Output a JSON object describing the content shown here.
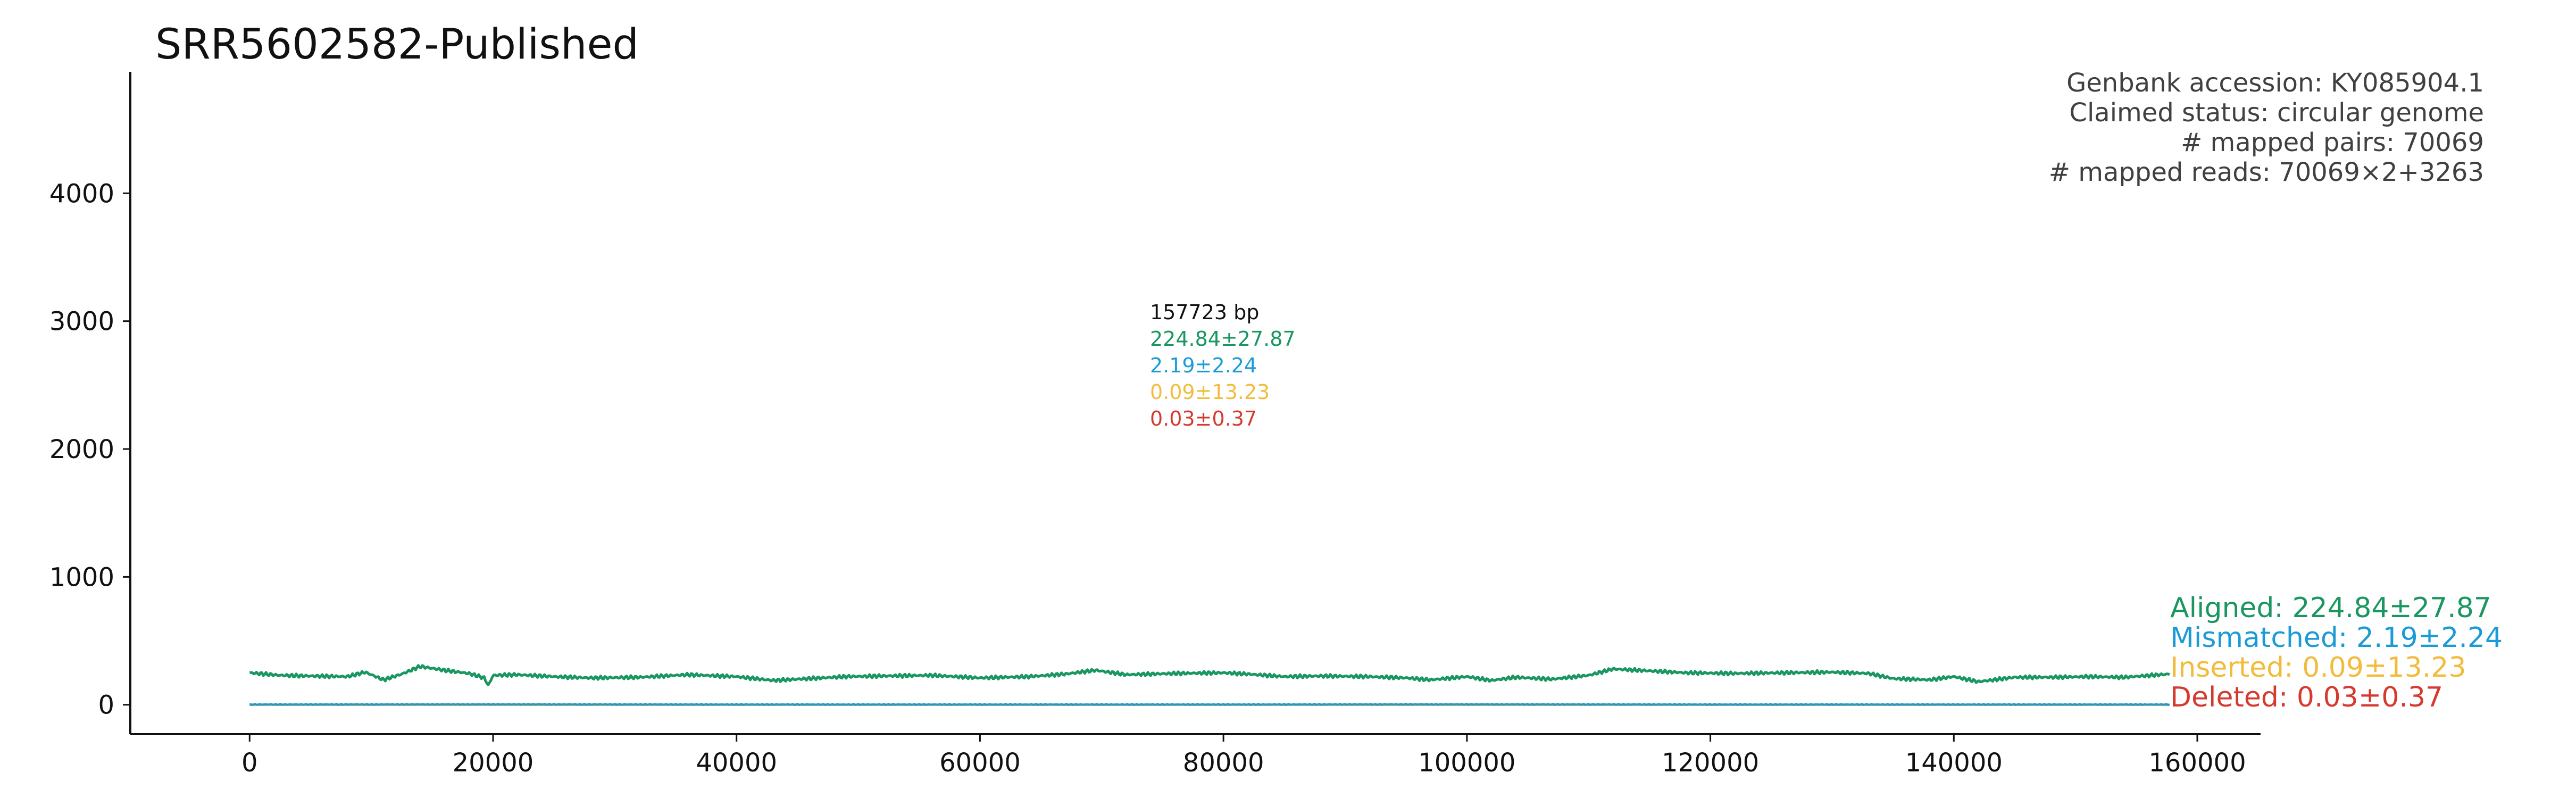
{
  "chart_data": {
    "type": "line",
    "title": "SRR5602582-Published",
    "xlabel": "",
    "ylabel": "",
    "xlim": [
      -9800,
      165200
    ],
    "ylim": [
      -230,
      4950
    ],
    "x_ticks": [
      0,
      20000,
      40000,
      60000,
      80000,
      100000,
      120000,
      140000,
      160000
    ],
    "x_tick_labels": [
      "0",
      "20000",
      "40000",
      "60000",
      "80000",
      "100000",
      "120000",
      "140000",
      "160000"
    ],
    "y_ticks": [
      0,
      1000,
      2000,
      3000,
      4000
    ],
    "y_tick_labels": [
      "0",
      "1000",
      "2000",
      "3000",
      "4000"
    ],
    "grid": false,
    "genome_length": 157723,
    "series": [
      {
        "name": "Aligned",
        "color": "#1a9660",
        "mean": 224.84,
        "sd": 27.87,
        "x": [
          0,
          2500,
          5000,
          8000,
          9500,
          11000,
          12500,
          14000,
          16000,
          18000,
          19300,
          19600,
          20000,
          22000,
          25000,
          28000,
          32000,
          36000,
          40000,
          43000,
          46000,
          49000,
          52000,
          56000,
          60000,
          64000,
          67000,
          69500,
          72000,
          76000,
          80000,
          82000,
          85000,
          88000,
          92000,
          95000,
          97000,
          100000,
          102000,
          104000,
          107000,
          110000,
          112000,
          115000,
          118000,
          122000,
          126000,
          130000,
          133000,
          135000,
          138000,
          140000,
          142000,
          145000,
          148000,
          151000,
          154000,
          157723
        ],
        "y": [
          250,
          230,
          225,
          220,
          255,
          195,
          240,
          300,
          270,
          245,
          210,
          150,
          230,
          235,
          220,
          210,
          215,
          235,
          220,
          190,
          205,
          220,
          225,
          230,
          210,
          220,
          240,
          270,
          235,
          245,
          250,
          240,
          220,
          225,
          220,
          210,
          195,
          220,
          190,
          215,
          200,
          230,
          280,
          265,
          250,
          245,
          250,
          255,
          245,
          205,
          195,
          220,
          180,
          215,
          215,
          220,
          215,
          240
        ]
      },
      {
        "name": "Mismatched",
        "color": "#1b9bd6",
        "mean": 2.19,
        "sd": 2.24,
        "x": [
          0,
          20000,
          40000,
          60000,
          80000,
          100000,
          120000,
          140000,
          157723
        ],
        "y": [
          2,
          3,
          2,
          2,
          2,
          3,
          2,
          2,
          2
        ]
      },
      {
        "name": "Inserted",
        "color": "#f2bc3b",
        "mean": 0.09,
        "sd": 13.23,
        "x": [
          0,
          20000,
          40000,
          60000,
          80000,
          100000,
          120000,
          140000,
          157723
        ],
        "y": [
          0,
          0,
          0,
          0,
          0,
          0,
          0,
          0,
          0
        ]
      },
      {
        "name": "Deleted",
        "color": "#d63a2f",
        "mean": 0.03,
        "sd": 0.37,
        "x": [
          0,
          20000,
          40000,
          60000,
          80000,
          100000,
          120000,
          140000,
          157723
        ],
        "y": [
          0,
          0,
          0,
          0,
          0,
          0,
          0,
          0,
          0
        ]
      }
    ],
    "info_text": [
      "Genbank accession: KY085904.1",
      "Claimed status: circular genome",
      "# mapped pairs: 70069",
      "# mapped reads: 70069×2+3263"
    ],
    "center_stats": {
      "length_label": "157723 bp",
      "aligned": "224.84±27.87",
      "mismatched": "2.19±2.24",
      "inserted": "0.09±13.23",
      "deleted": "0.03±0.37"
    },
    "legend": [
      {
        "label": "Aligned: 224.84±27.87",
        "color": "#1a9660"
      },
      {
        "label": "Mismatched: 2.19±2.24",
        "color": "#1b9bd6"
      },
      {
        "label": "Inserted: 0.09±13.23",
        "color": "#f2bc3b"
      },
      {
        "label": "Deleted: 0.03±0.37",
        "color": "#d63a2f"
      }
    ],
    "legend_placement": "right"
  }
}
